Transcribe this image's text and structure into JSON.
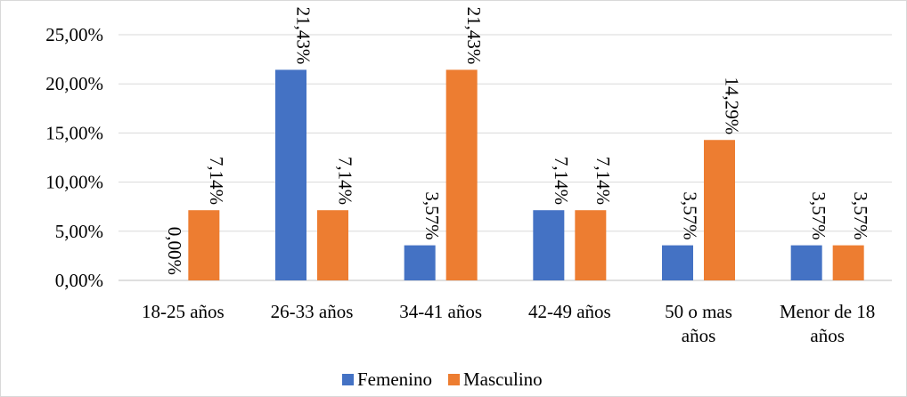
{
  "chart_data": {
    "type": "bar",
    "categories": [
      [
        "18-25 años"
      ],
      [
        "26-33 años"
      ],
      [
        "34-41 años"
      ],
      [
        "42-49 años"
      ],
      [
        "50 o mas",
        "años"
      ],
      [
        "Menor de 18",
        "años"
      ]
    ],
    "series": [
      {
        "name": "Femenino",
        "color": "#4472c4",
        "values": [
          0.0,
          21.43,
          3.57,
          7.14,
          3.57,
          3.57
        ],
        "labels": [
          "0,00%",
          "21,43%",
          "3,57%",
          "7,14%",
          "3,57%",
          "3,57%"
        ]
      },
      {
        "name": "Masculino",
        "color": "#ed7d31",
        "values": [
          7.14,
          7.14,
          21.43,
          7.14,
          14.29,
          3.57
        ],
        "labels": [
          "7,14%",
          "7,14%",
          "21,43%",
          "7,14%",
          "14,29%",
          "3,57%"
        ]
      }
    ],
    "yticks": [
      0,
      5,
      10,
      15,
      20,
      25
    ],
    "ytick_labels": [
      "0,00%",
      "5,00%",
      "10,00%",
      "15,00%",
      "20,00%",
      "25,00%"
    ],
    "ylim": [
      0,
      25
    ],
    "grid": true,
    "legend_position": "bottom",
    "title": "",
    "xlabel": "",
    "ylabel": ""
  }
}
